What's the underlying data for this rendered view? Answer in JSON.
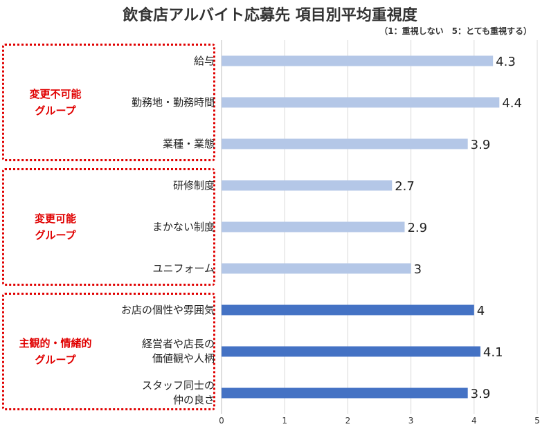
{
  "chart_data": {
    "type": "bar",
    "orientation": "horizontal",
    "title": "飲食店アルバイト応募先 項目別平均重視度",
    "subtitle": "（1：重視しない　5：とても重視する）",
    "xlim": [
      0,
      5
    ],
    "xticks": [
      "0",
      "1",
      "2",
      "3",
      "4",
      "5"
    ],
    "grid": true,
    "groups": [
      {
        "label": "変更不可能\nグループ",
        "color": "#b4c7e7",
        "items": [
          {
            "category": "給与",
            "value": 4.3,
            "label": "4.3"
          },
          {
            "category": "勤務地・勤務時間",
            "value": 4.4,
            "label": "4.4"
          },
          {
            "category": "業種・業態",
            "value": 3.9,
            "label": "3.9"
          }
        ]
      },
      {
        "label": "変更可能\nグループ",
        "color": "#b4c7e7",
        "items": [
          {
            "category": "研修制度",
            "value": 2.7,
            "label": "2.7"
          },
          {
            "category": "まかない制度",
            "value": 2.9,
            "label": "2.9"
          },
          {
            "category": "ユニフォーム",
            "value": 3.0,
            "label": "3"
          }
        ]
      },
      {
        "label": "主観的・情緒的\nグループ",
        "color": "#4472c4",
        "items": [
          {
            "category": "お店の個性や雰囲気",
            "value": 4.0,
            "label": "4"
          },
          {
            "category": "経営者や店長の\n価値観や人柄",
            "value": 4.1,
            "label": "4.1"
          },
          {
            "category": "スタッフ同士の\n仲の良さ",
            "value": 3.9,
            "label": "3.9"
          }
        ]
      }
    ]
  }
}
